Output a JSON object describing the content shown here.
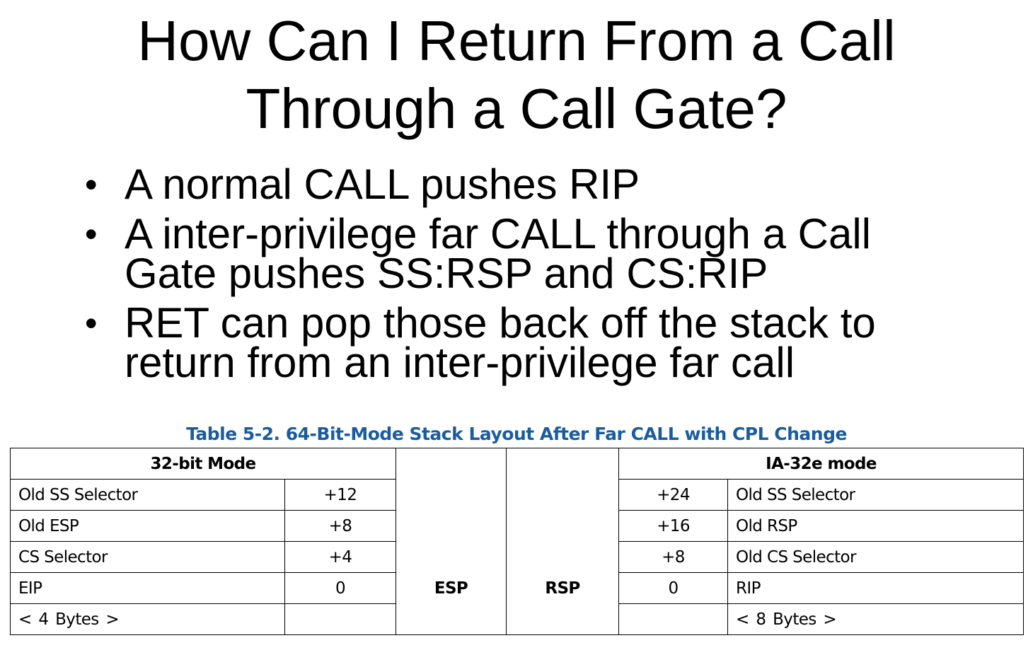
{
  "title": {
    "line1": "How Can I Return From a Call",
    "line2": "Through a Call Gate?"
  },
  "bullets": [
    {
      "lines": [
        "A normal CALL pushes RIP"
      ]
    },
    {
      "lines": [
        "A inter-privilege far CALL through a Call",
        "Gate pushes SS:RSP and CS:RIP"
      ]
    },
    {
      "lines": [
        "RET can pop those back off the stack to",
        "return from an inter-privilege far call"
      ]
    }
  ],
  "bullet_glyph": "•",
  "table": {
    "caption": "Table 5-2.  64-Bit-Mode Stack Layout After Far CALL with CPL Change",
    "left_header": "32-bit Mode",
    "right_header": "IA-32e mode",
    "left_rows": [
      {
        "label": "Old SS Selector",
        "offset": "+12"
      },
      {
        "label": "Old ESP",
        "offset": "+8"
      },
      {
        "label": "CS Selector",
        "offset": "+4"
      },
      {
        "label": "EIP",
        "offset": "0"
      },
      {
        "label": "< 4 Bytes >",
        "offset": ""
      }
    ],
    "right_rows": [
      {
        "offset": "+24",
        "label": "Old SS Selector"
      },
      {
        "offset": "+16",
        "label": "Old RSP"
      },
      {
        "offset": "+8",
        "label": "Old CS Selector"
      },
      {
        "offset": "0",
        "label": "RIP"
      },
      {
        "offset": "",
        "label": "< 8 Bytes >"
      }
    ],
    "left_pointer": "ESP",
    "right_pointer": "RSP",
    "caption_color": "#1a5c9e"
  }
}
